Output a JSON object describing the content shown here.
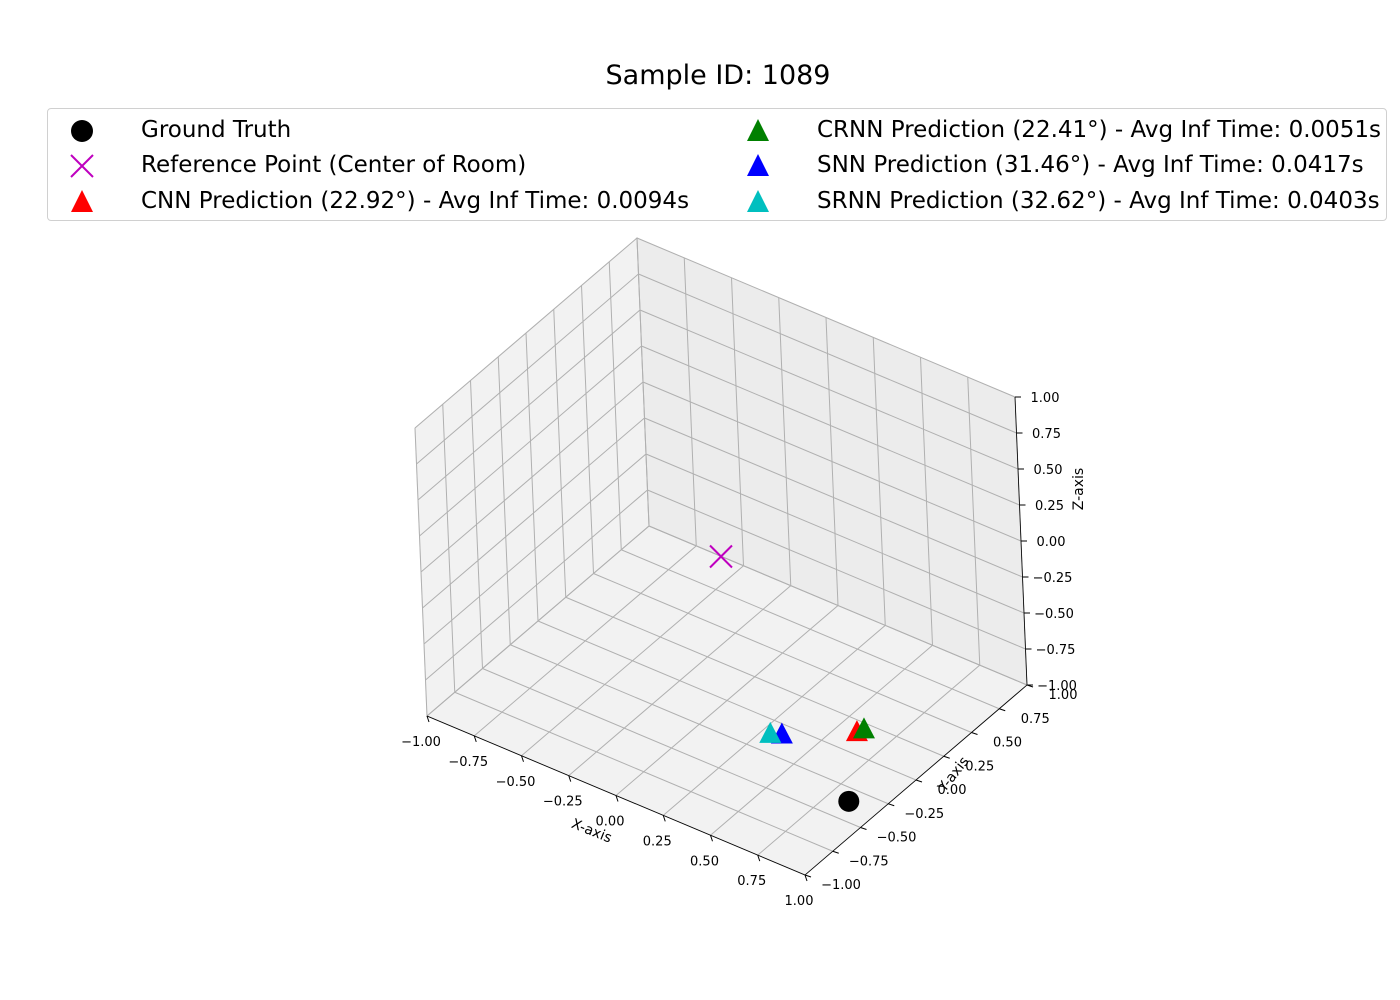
{
  "chart_data": {
    "type": "scatter",
    "projection": "3d",
    "title": "Sample ID: 1089",
    "xlabel": "X-axis",
    "ylabel": "Y-axis",
    "zlabel": "Z-axis",
    "xlim": [
      -1.0,
      1.0
    ],
    "ylim": [
      -1.0,
      1.0
    ],
    "zlim": [
      -1.0,
      1.0
    ],
    "x_ticks": [
      "−1.00",
      "−0.75",
      "−0.50",
      "−0.25",
      "0.00",
      "0.25",
      "0.50",
      "0.75",
      "1.00"
    ],
    "y_ticks": [
      "−1.00",
      "−0.75",
      "−0.50",
      "−0.25",
      "0.00",
      "0.25",
      "0.50",
      "0.75",
      "1.00"
    ],
    "z_ticks": [
      "−1.00",
      "−0.75",
      "−0.50",
      "−0.25",
      "0.00",
      "0.25",
      "0.50",
      "0.75",
      "1.00"
    ],
    "grid": true,
    "legend_position": "top",
    "series": [
      {
        "name": "Ground Truth",
        "marker": "circle",
        "color": "#000000",
        "x": 0.85,
        "y": -0.35,
        "z": -1.0
      },
      {
        "name": "Reference Point (Center of Room)",
        "marker": "x",
        "color": "#bf00bf",
        "x": 0.0,
        "y": 0.0,
        "z": 0.0
      },
      {
        "name": "CNN Prediction (22.92°) - Avg Inf Time: 0.0094s",
        "marker": "triangle",
        "color": "#ff0000",
        "x": 0.6,
        "y": 0.15,
        "z": -0.98
      },
      {
        "name": "CRNN Prediction (22.41°) - Avg Inf Time: 0.0051s",
        "marker": "triangle",
        "color": "#008000",
        "x": 0.62,
        "y": 0.18,
        "z": -0.97
      },
      {
        "name": "SNN Prediction (31.46°) - Avg Inf Time: 0.0417s",
        "marker": "triangle",
        "color": "#0000ff",
        "x": 0.35,
        "y": -0.1,
        "z": -0.97
      },
      {
        "name": "SRNN Prediction (32.62°) - Avg Inf Time: 0.0403s",
        "marker": "triangle",
        "color": "#00bfbf",
        "x": 0.3,
        "y": -0.12,
        "z": -0.98
      }
    ]
  }
}
